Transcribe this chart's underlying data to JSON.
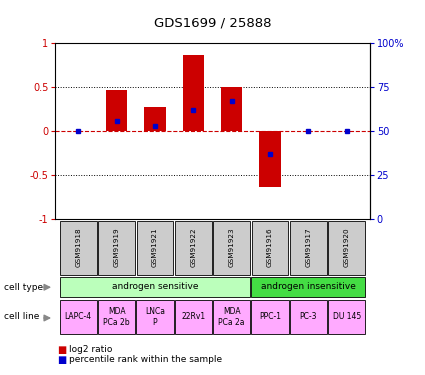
{
  "title": "GDS1699 / 25888",
  "samples": [
    "GSM91918",
    "GSM91919",
    "GSM91921",
    "GSM91922",
    "GSM91923",
    "GSM91916",
    "GSM91917",
    "GSM91920"
  ],
  "log2_ratio": [
    0.0,
    0.47,
    0.27,
    0.87,
    0.5,
    -0.63,
    0.0,
    0.0
  ],
  "pct_right": [
    50,
    56,
    53,
    62,
    67,
    37,
    50,
    50
  ],
  "bar_color": "#cc0000",
  "dot_color": "#0000cc",
  "ylim": [
    -1.0,
    1.0
  ],
  "cell_type_groups": [
    {
      "label": "androgen sensitive",
      "start": 0,
      "end": 5,
      "color": "#bbffbb"
    },
    {
      "label": "androgen insensitive",
      "start": 5,
      "end": 8,
      "color": "#44dd44"
    }
  ],
  "cell_lines": [
    {
      "label": "LAPC-4",
      "start": 0,
      "end": 1
    },
    {
      "label": "MDA\nPCa 2b",
      "start": 1,
      "end": 2
    },
    {
      "label": "LNCa\nP",
      "start": 2,
      "end": 3
    },
    {
      "label": "22Rv1",
      "start": 3,
      "end": 4
    },
    {
      "label": "MDA\nPCa 2a",
      "start": 4,
      "end": 5
    },
    {
      "label": "PPC-1",
      "start": 5,
      "end": 6
    },
    {
      "label": "PC-3",
      "start": 6,
      "end": 7
    },
    {
      "label": "DU 145",
      "start": 7,
      "end": 8
    }
  ],
  "cell_line_color": "#ffaaff",
  "sample_box_color": "#cccccc",
  "legend_items": [
    {
      "label": "log2 ratio",
      "color": "#cc0000"
    },
    {
      "label": "percentile rank within the sample",
      "color": "#0000cc"
    }
  ],
  "left_ylabel_color": "#cc0000",
  "right_ylabel_color": "#0000cc",
  "background_color": "#ffffff"
}
